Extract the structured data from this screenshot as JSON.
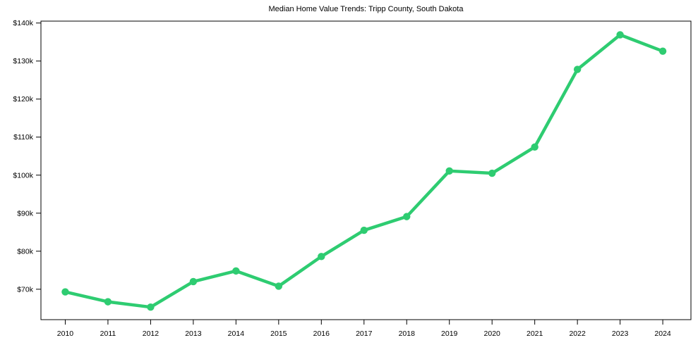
{
  "figure": {
    "background": "#ffffff",
    "frame_color": "#000000",
    "text_color": "#000000"
  },
  "chart_data": {
    "type": "line",
    "title": "Median Home Value Trends: Tripp County, South Dakota",
    "xlabel": "",
    "ylabel": "",
    "grid": false,
    "legend": "none",
    "line_color": "#2ecc71",
    "marker": "circle",
    "x": [
      2010,
      2011,
      2012,
      2013,
      2014,
      2015,
      2016,
      2017,
      2018,
      2019,
      2020,
      2021,
      2022,
      2023,
      2024
    ],
    "xtick_labels": [
      "2010",
      "2011",
      "2012",
      "2013",
      "2014",
      "2015",
      "2016",
      "2017",
      "2018",
      "2019",
      "2020",
      "2021",
      "2022",
      "2023",
      "2024"
    ],
    "series": [
      {
        "name": "Median Home Value",
        "values": [
          69300,
          66700,
          65300,
          72000,
          74800,
          70800,
          78600,
          85500,
          89100,
          101100,
          100500,
          107400,
          127800,
          136900,
          132600
        ]
      }
    ],
    "yticks": [
      70000,
      80000,
      90000,
      100000,
      110000,
      120000,
      130000,
      140000
    ],
    "ytick_labels": [
      "$70k",
      "$80k",
      "$90k",
      "$100k",
      "$110k",
      "$120k",
      "$130k",
      "$140k"
    ],
    "xlim": [
      2009.43,
      2024.66
    ],
    "ylim": [
      62000,
      140500
    ]
  }
}
